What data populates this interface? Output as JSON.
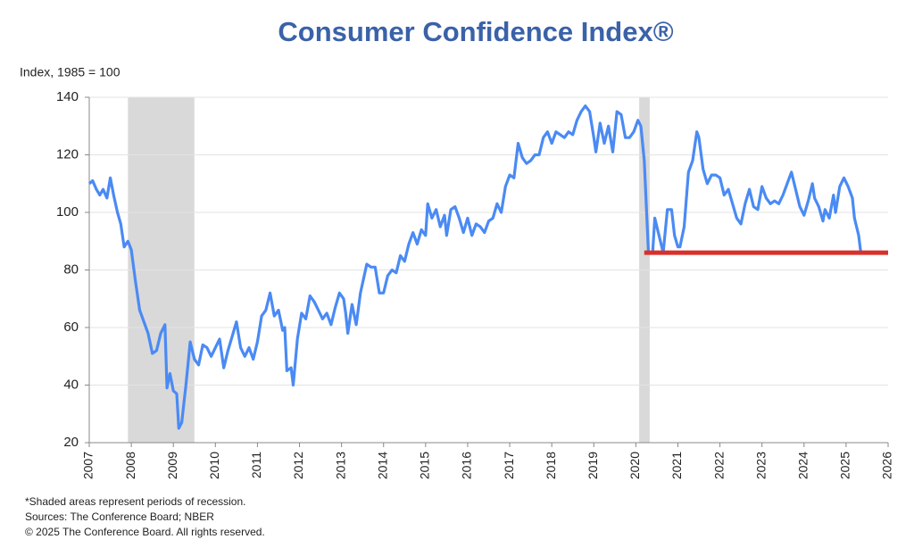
{
  "chart_data": {
    "type": "line",
    "title": "Consumer Confidence Index®",
    "y_label": "Index, 1985 = 100",
    "notes": [
      "*Shaded areas represent periods of recession.",
      "Sources: The Conference Board;  NBER",
      "© 2025 The Conference Board. All rights reserved."
    ],
    "color": "#4a8af4",
    "x": [
      2007.0,
      2007.08,
      2007.17,
      2007.25,
      2007.33,
      2007.42,
      2007.5,
      2007.58,
      2007.67,
      2007.75,
      2007.83,
      2007.92,
      2008.0,
      2008.1,
      2008.2,
      2008.3,
      2008.4,
      2008.5,
      2008.6,
      2008.7,
      2008.8,
      2008.85,
      2008.92,
      2009.0,
      2009.08,
      2009.13,
      2009.2,
      2009.3,
      2009.4,
      2009.5,
      2009.6,
      2009.7,
      2009.8,
      2009.9,
      2010.0,
      2010.1,
      2010.2,
      2010.3,
      2010.4,
      2010.5,
      2010.6,
      2010.7,
      2010.8,
      2010.9,
      2011.0,
      2011.1,
      2011.2,
      2011.3,
      2011.4,
      2011.5,
      2011.6,
      2011.65,
      2011.7,
      2011.8,
      2011.85,
      2011.95,
      2012.05,
      2012.15,
      2012.25,
      2012.35,
      2012.45,
      2012.55,
      2012.65,
      2012.75,
      2012.85,
      2012.95,
      2013.05,
      2013.1,
      2013.15,
      2013.25,
      2013.35,
      2013.45,
      2013.6,
      2013.7,
      2013.8,
      2013.9,
      2014.0,
      2014.1,
      2014.2,
      2014.3,
      2014.4,
      2014.5,
      2014.6,
      2014.7,
      2014.8,
      2014.9,
      2015.0,
      2015.05,
      2015.15,
      2015.25,
      2015.35,
      2015.45,
      2015.5,
      2015.6,
      2015.7,
      2015.8,
      2015.9,
      2016.0,
      2016.1,
      2016.2,
      2016.3,
      2016.4,
      2016.5,
      2016.6,
      2016.7,
      2016.8,
      2016.9,
      2017.0,
      2017.1,
      2017.2,
      2017.3,
      2017.4,
      2017.5,
      2017.6,
      2017.7,
      2017.8,
      2017.9,
      2018.0,
      2018.1,
      2018.2,
      2018.3,
      2018.4,
      2018.5,
      2018.6,
      2018.7,
      2018.8,
      2018.9,
      2019.0,
      2019.05,
      2019.15,
      2019.25,
      2019.35,
      2019.45,
      2019.55,
      2019.65,
      2019.75,
      2019.85,
      2019.95,
      2020.05,
      2020.12,
      2020.2,
      2020.3,
      2020.4,
      2020.45,
      2020.55,
      2020.65,
      2020.75,
      2020.85,
      2020.92,
      2021.0,
      2021.05,
      2021.15,
      2021.25,
      2021.35,
      2021.45,
      2021.5,
      2021.6,
      2021.7,
      2021.8,
      2021.9,
      2022.0,
      2022.1,
      2022.2,
      2022.3,
      2022.4,
      2022.5,
      2022.6,
      2022.7,
      2022.8,
      2022.9,
      2023.0,
      2023.1,
      2023.2,
      2023.3,
      2023.4,
      2023.5,
      2023.6,
      2023.7,
      2023.8,
      2023.9,
      2024.0,
      2024.1,
      2024.2,
      2024.25,
      2024.35,
      2024.45,
      2024.5,
      2024.6,
      2024.7,
      2024.75,
      2024.85,
      2024.95,
      2025.05,
      2025.15,
      2025.2,
      2025.3,
      2025.35
    ],
    "values": [
      110,
      111,
      108,
      106,
      108,
      105,
      112,
      106,
      100,
      96,
      88,
      90,
      87,
      76,
      66,
      62,
      58,
      51,
      52,
      58,
      61,
      39,
      44,
      38,
      37,
      25,
      27,
      40,
      55,
      49,
      47,
      54,
      53,
      50,
      53,
      56,
      46,
      52,
      57,
      62,
      53,
      50,
      53,
      49,
      55,
      64,
      66,
      72,
      64,
      66,
      59,
      60,
      45,
      46,
      40,
      56,
      65,
      63,
      71,
      69,
      66,
      63,
      65,
      61,
      67,
      72,
      70,
      65,
      58,
      68,
      61,
      72,
      82,
      81,
      81,
      72,
      72,
      78,
      80,
      79,
      85,
      83,
      89,
      93,
      89,
      94,
      92,
      103,
      98,
      101,
      95,
      99,
      92,
      101,
      102,
      98,
      93,
      98,
      92,
      96,
      95,
      93,
      97,
      98,
      103,
      100,
      109,
      113,
      112,
      124,
      119,
      117,
      118,
      120,
      120,
      126,
      128,
      124,
      128,
      127,
      126,
      128,
      127,
      132,
      135,
      137,
      135,
      126,
      121,
      131,
      124,
      130,
      121,
      135,
      134,
      126,
      126,
      128,
      132,
      130,
      118,
      86,
      86,
      98,
      92,
      86,
      101,
      101,
      92,
      88,
      88,
      95,
      114,
      118,
      128,
      126,
      115,
      110,
      113,
      113,
      112,
      106,
      108,
      103,
      98,
      96,
      103,
      108,
      102,
      101,
      109,
      105,
      103,
      104,
      103,
      106,
      110,
      114,
      108,
      102,
      99,
      104,
      110,
      105,
      102,
      97,
      101,
      98,
      106,
      100,
      109,
      112,
      109,
      105,
      98,
      92,
      86
    ],
    "xlim": [
      2007,
      2026
    ],
    "xticks": [
      2007,
      2008,
      2009,
      2010,
      2011,
      2012,
      2013,
      2014,
      2015,
      2016,
      2017,
      2018,
      2019,
      2020,
      2021,
      2022,
      2023,
      2024,
      2025,
      2026
    ],
    "ylim": [
      20,
      140
    ],
    "yticks": [
      20,
      40,
      60,
      80,
      100,
      120,
      140
    ],
    "grid": true,
    "recessions": [
      [
        2007.92,
        2009.5
      ],
      [
        2020.08,
        2020.33
      ]
    ],
    "reference_line": {
      "y": 86,
      "x": [
        2020.2,
        2026
      ],
      "color": "#d9302a"
    }
  }
}
